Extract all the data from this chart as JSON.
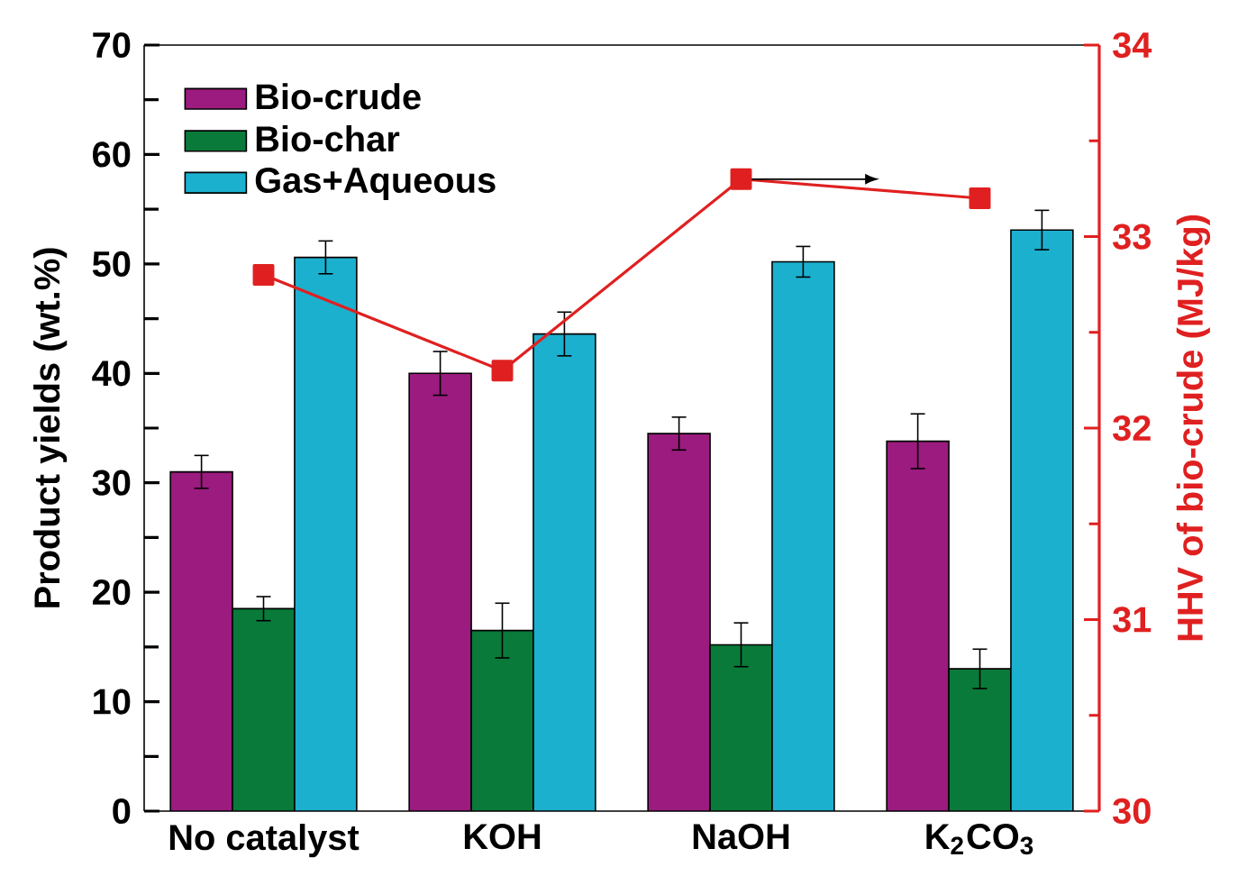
{
  "chart_data": {
    "type": "bar",
    "categories": [
      "No catalyst",
      "KOH",
      "NaOH",
      "K$_{2}$CO$_{3}$"
    ],
    "series": [
      {
        "name": "Bio-crude",
        "color": "#9b1b7e",
        "values": [
          31.0,
          40.0,
          34.5,
          33.8
        ],
        "errors": [
          1.5,
          2.0,
          1.5,
          2.5
        ]
      },
      {
        "name": "Bio-char",
        "color": "#0a7a3a",
        "values": [
          18.5,
          16.5,
          15.2,
          13.0
        ],
        "errors": [
          1.1,
          2.5,
          2.0,
          1.8
        ]
      },
      {
        "name": "Gas+Aqueous",
        "color": "#1cb0cf",
        "values": [
          50.6,
          43.6,
          50.2,
          53.1
        ],
        "errors": [
          1.5,
          2.0,
          1.4,
          1.8
        ]
      },
      {
        "type": "line",
        "axis": "y2",
        "color": "#e02020",
        "marker": "square",
        "values": [
          32.8,
          32.3,
          33.3,
          33.2
        ]
      }
    ],
    "ylabel": "Product yields (wt.%)",
    "y2label": "HHV of bio-crude (MJ/kg)",
    "ylim": [
      0,
      70
    ],
    "yticks": [
      0,
      10,
      20,
      30,
      40,
      50,
      60,
      70
    ],
    "y2lim": [
      30,
      34
    ],
    "y2ticks": [
      30,
      31,
      32,
      33,
      34
    ],
    "legend": "top left",
    "grid": false
  }
}
